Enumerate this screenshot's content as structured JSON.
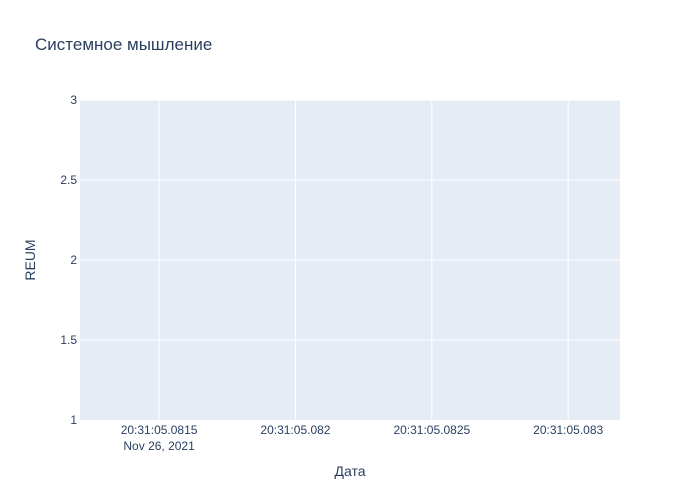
{
  "chart_data": {
    "type": "line",
    "title": "Системное мышление",
    "xlabel": "Дата",
    "ylabel": "REUM",
    "x_ticks": [
      {
        "label": "20:31:05.0815",
        "sublabel": "Nov 26, 2021",
        "value": 0.0815
      },
      {
        "label": "20:31:05.082",
        "value": 0.082
      },
      {
        "label": "20:31:05.0825",
        "value": 0.0825
      },
      {
        "label": "20:31:05.083",
        "value": 0.083
      }
    ],
    "xlim": [
      0.08121,
      0.08319
    ],
    "y_ticks": [
      {
        "label": "1",
        "value": 1
      },
      {
        "label": "1.5",
        "value": 1.5
      },
      {
        "label": "2",
        "value": 2
      },
      {
        "label": "2.5",
        "value": 2.5
      },
      {
        "label": "3",
        "value": 3
      }
    ],
    "ylim": [
      1,
      3
    ],
    "series": [],
    "grid": true,
    "colors": {
      "plot_background": "#e5ecf6",
      "grid": "#ffffff",
      "text": "#2a3f5f",
      "tick_text": "#2a3f5f"
    }
  }
}
